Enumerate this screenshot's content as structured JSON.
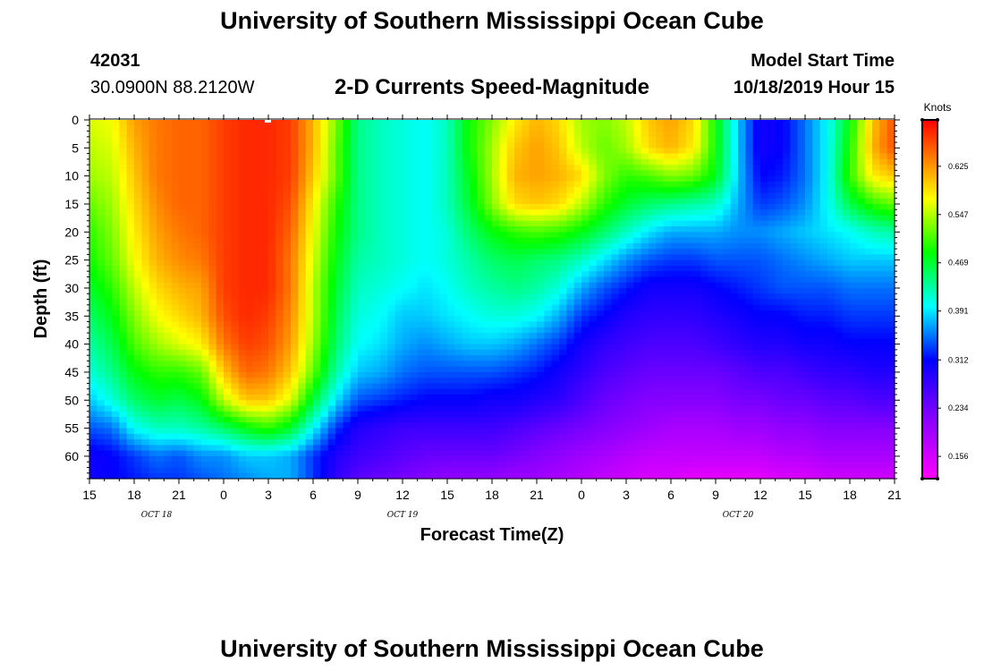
{
  "header": {
    "title": "University of Southern Mississippi Ocean Cube",
    "station_id": "42031",
    "station_coords": "30.0900N 88.2120W",
    "plot_title": "2-D Currents Speed-Magnitude",
    "model_start_label": "Model Start Time",
    "model_start_value": "10/18/2019 Hour 15"
  },
  "footer": {
    "title": "University of Southern Mississippi Ocean Cube"
  },
  "chart_data": {
    "type": "heatmap",
    "title": "2-D Currents Speed-Magnitude",
    "xlabel": "Forecast Time(Z)",
    "ylabel": "Depth (ft)",
    "x_tick_labels": [
      "15",
      "18",
      "21",
      "0",
      "3",
      "6",
      "9",
      "12",
      "15",
      "18",
      "21",
      "0",
      "3",
      "6",
      "9",
      "12",
      "15",
      "18",
      "21"
    ],
    "x_date_labels": [
      {
        "label": "OCT 18",
        "hour_offset": 4.5
      },
      {
        "label": "OCT 19",
        "hour_offset": 21
      },
      {
        "label": "OCT 20",
        "hour_offset": 43.5
      }
    ],
    "x_range_hours": [
      0,
      54
    ],
    "y_ticks": [
      0,
      5,
      10,
      15,
      20,
      25,
      30,
      35,
      40,
      45,
      50,
      55,
      60
    ],
    "ylim": [
      0,
      64
    ],
    "y_inverted": true,
    "colorbar": {
      "label": "Knots",
      "tick_values": [
        "0.625",
        "0.547",
        "0.469",
        "0.391",
        "0.312",
        "0.234",
        "0.156"
      ],
      "range": [
        0.12,
        0.7
      ]
    },
    "field": {
      "hours": [
        0,
        1.5,
        3,
        4.5,
        6,
        7.5,
        9,
        10.5,
        12,
        13.5,
        15,
        16.5,
        18,
        19.5,
        21,
        22.5,
        24,
        25.5,
        27,
        28.5,
        30,
        31.5,
        33,
        34.5,
        36,
        37.5,
        39,
        40.5,
        42,
        43.5,
        45,
        46.5,
        48,
        49.5,
        51,
        52.5,
        54
      ],
      "depths": [
        0,
        5,
        10,
        15,
        20,
        25,
        30,
        35,
        40,
        45,
        50,
        55,
        60,
        64
      ],
      "values": [
        [
          0.56,
          0.57,
          0.62,
          0.64,
          0.65,
          0.65,
          0.67,
          0.68,
          0.68,
          0.67,
          0.61,
          0.53,
          0.44,
          0.42,
          0.41,
          0.4,
          0.42,
          0.49,
          0.53,
          0.58,
          0.61,
          0.59,
          0.54,
          0.53,
          0.55,
          0.6,
          0.62,
          0.59,
          0.49,
          0.38,
          0.3,
          0.31,
          0.35,
          0.4,
          0.48,
          0.6,
          0.66
        ],
        [
          0.55,
          0.56,
          0.61,
          0.64,
          0.65,
          0.65,
          0.67,
          0.68,
          0.68,
          0.67,
          0.61,
          0.52,
          0.44,
          0.42,
          0.41,
          0.4,
          0.42,
          0.49,
          0.54,
          0.6,
          0.62,
          0.6,
          0.55,
          0.52,
          0.54,
          0.59,
          0.61,
          0.58,
          0.49,
          0.38,
          0.3,
          0.31,
          0.35,
          0.4,
          0.49,
          0.61,
          0.66
        ],
        [
          0.54,
          0.55,
          0.6,
          0.64,
          0.65,
          0.65,
          0.67,
          0.68,
          0.68,
          0.67,
          0.6,
          0.52,
          0.44,
          0.42,
          0.41,
          0.4,
          0.42,
          0.48,
          0.54,
          0.61,
          0.62,
          0.61,
          0.59,
          0.53,
          0.5,
          0.51,
          0.53,
          0.52,
          0.48,
          0.38,
          0.31,
          0.32,
          0.35,
          0.4,
          0.5,
          0.58,
          0.6
        ],
        [
          0.52,
          0.54,
          0.59,
          0.63,
          0.65,
          0.65,
          0.67,
          0.68,
          0.68,
          0.66,
          0.58,
          0.5,
          0.44,
          0.42,
          0.41,
          0.4,
          0.42,
          0.47,
          0.53,
          0.59,
          0.6,
          0.59,
          0.55,
          0.5,
          0.47,
          0.45,
          0.44,
          0.43,
          0.42,
          0.37,
          0.33,
          0.34,
          0.36,
          0.4,
          0.46,
          0.5,
          0.52
        ],
        [
          0.5,
          0.53,
          0.58,
          0.62,
          0.64,
          0.65,
          0.67,
          0.68,
          0.68,
          0.65,
          0.57,
          0.49,
          0.44,
          0.42,
          0.41,
          0.4,
          0.41,
          0.45,
          0.48,
          0.5,
          0.51,
          0.5,
          0.48,
          0.45,
          0.42,
          0.39,
          0.37,
          0.37,
          0.37,
          0.36,
          0.36,
          0.37,
          0.38,
          0.39,
          0.4,
          0.42,
          0.43
        ],
        [
          0.49,
          0.52,
          0.57,
          0.61,
          0.63,
          0.64,
          0.67,
          0.68,
          0.68,
          0.64,
          0.56,
          0.48,
          0.43,
          0.42,
          0.41,
          0.4,
          0.41,
          0.43,
          0.45,
          0.46,
          0.45,
          0.44,
          0.42,
          0.39,
          0.36,
          0.34,
          0.33,
          0.33,
          0.34,
          0.34,
          0.34,
          0.35,
          0.36,
          0.37,
          0.38,
          0.38,
          0.38
        ],
        [
          0.47,
          0.5,
          0.55,
          0.59,
          0.61,
          0.62,
          0.67,
          0.68,
          0.68,
          0.64,
          0.55,
          0.47,
          0.42,
          0.41,
          0.4,
          0.39,
          0.4,
          0.42,
          0.43,
          0.44,
          0.43,
          0.41,
          0.37,
          0.34,
          0.32,
          0.3,
          0.3,
          0.3,
          0.31,
          0.32,
          0.33,
          0.34,
          0.34,
          0.34,
          0.35,
          0.35,
          0.35
        ],
        [
          0.45,
          0.48,
          0.53,
          0.57,
          0.59,
          0.61,
          0.66,
          0.68,
          0.67,
          0.63,
          0.55,
          0.46,
          0.41,
          0.4,
          0.38,
          0.38,
          0.39,
          0.4,
          0.41,
          0.41,
          0.4,
          0.37,
          0.33,
          0.31,
          0.29,
          0.28,
          0.28,
          0.28,
          0.29,
          0.3,
          0.31,
          0.31,
          0.32,
          0.32,
          0.33,
          0.33,
          0.33
        ],
        [
          0.43,
          0.46,
          0.51,
          0.54,
          0.56,
          0.58,
          0.64,
          0.67,
          0.66,
          0.62,
          0.54,
          0.45,
          0.4,
          0.39,
          0.37,
          0.36,
          0.37,
          0.38,
          0.38,
          0.37,
          0.35,
          0.33,
          0.3,
          0.28,
          0.27,
          0.26,
          0.26,
          0.26,
          0.27,
          0.28,
          0.29,
          0.29,
          0.3,
          0.3,
          0.31,
          0.31,
          0.31
        ],
        [
          0.41,
          0.44,
          0.48,
          0.5,
          0.5,
          0.52,
          0.6,
          0.65,
          0.64,
          0.6,
          0.52,
          0.43,
          0.38,
          0.37,
          0.35,
          0.34,
          0.34,
          0.34,
          0.34,
          0.33,
          0.32,
          0.3,
          0.28,
          0.26,
          0.25,
          0.24,
          0.24,
          0.24,
          0.24,
          0.25,
          0.26,
          0.26,
          0.27,
          0.28,
          0.28,
          0.29,
          0.29
        ],
        [
          0.38,
          0.41,
          0.45,
          0.47,
          0.46,
          0.48,
          0.55,
          0.6,
          0.6,
          0.56,
          0.47,
          0.39,
          0.34,
          0.33,
          0.32,
          0.31,
          0.31,
          0.31,
          0.3,
          0.3,
          0.29,
          0.28,
          0.26,
          0.24,
          0.23,
          0.22,
          0.22,
          0.22,
          0.22,
          0.23,
          0.23,
          0.24,
          0.24,
          0.25,
          0.25,
          0.26,
          0.26
        ],
        [
          0.34,
          0.35,
          0.4,
          0.42,
          0.42,
          0.43,
          0.45,
          0.48,
          0.5,
          0.47,
          0.4,
          0.33,
          0.29,
          0.28,
          0.27,
          0.27,
          0.27,
          0.27,
          0.27,
          0.26,
          0.25,
          0.24,
          0.23,
          0.22,
          0.21,
          0.2,
          0.19,
          0.19,
          0.19,
          0.2,
          0.2,
          0.21,
          0.21,
          0.22,
          0.22,
          0.22,
          0.22
        ],
        [
          0.3,
          0.31,
          0.33,
          0.35,
          0.34,
          0.36,
          0.36,
          0.38,
          0.38,
          0.37,
          0.33,
          0.29,
          0.27,
          0.26,
          0.25,
          0.24,
          0.24,
          0.24,
          0.24,
          0.23,
          0.22,
          0.21,
          0.2,
          0.19,
          0.18,
          0.17,
          0.17,
          0.17,
          0.17,
          0.17,
          0.17,
          0.18,
          0.18,
          0.19,
          0.19,
          0.19,
          0.19
        ],
        [
          0.3,
          0.31,
          0.32,
          0.33,
          0.33,
          0.34,
          0.35,
          0.36,
          0.37,
          0.37,
          0.33,
          0.28,
          0.25,
          0.24,
          0.23,
          0.22,
          0.21,
          0.21,
          0.21,
          0.2,
          0.2,
          0.19,
          0.18,
          0.17,
          0.16,
          0.15,
          0.15,
          0.14,
          0.14,
          0.14,
          0.14,
          0.15,
          0.15,
          0.16,
          0.16,
          0.16,
          0.16
        ]
      ]
    }
  }
}
